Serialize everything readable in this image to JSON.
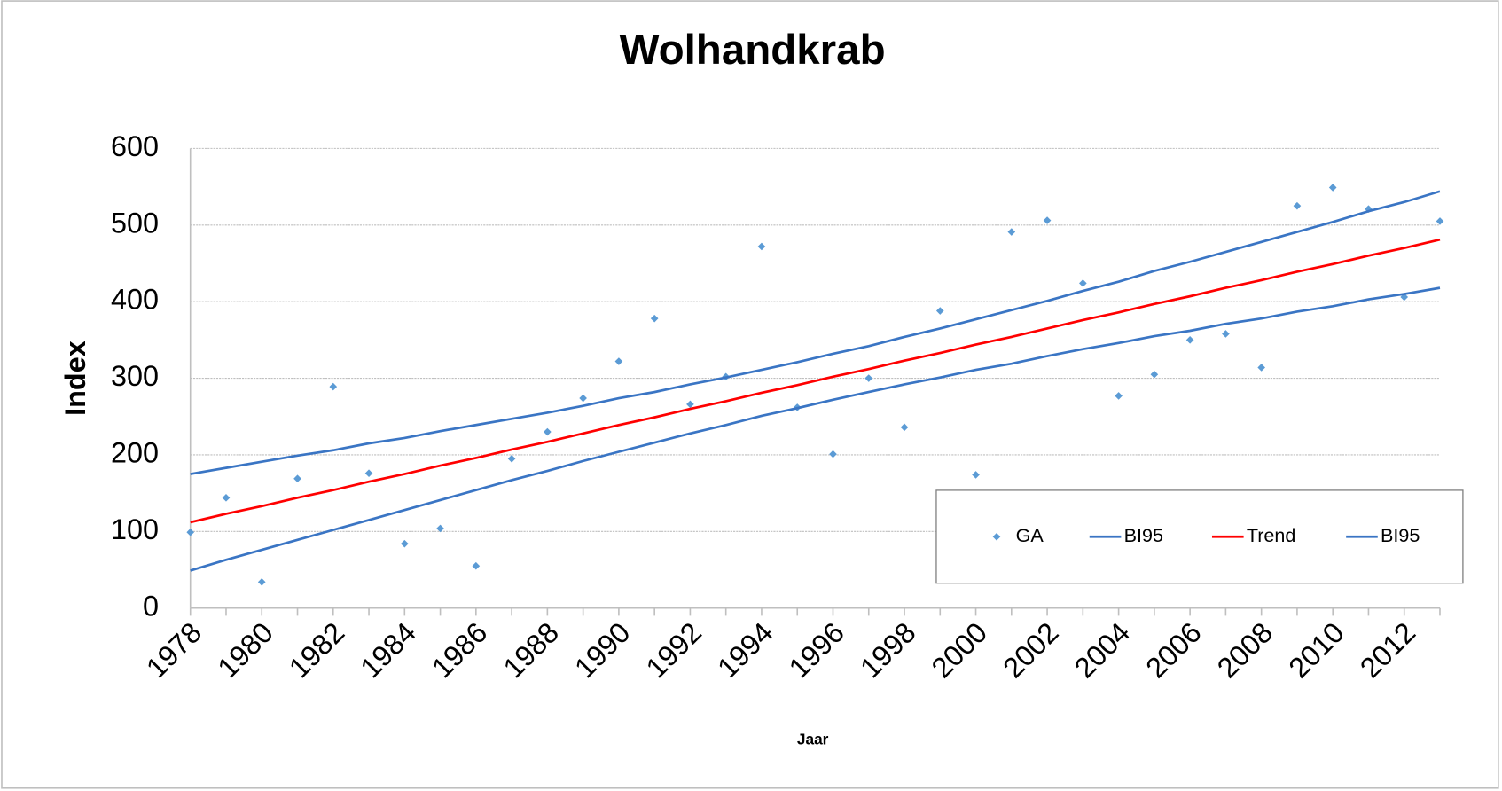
{
  "chart_data": {
    "type": "line",
    "title": "Wolhandkrab",
    "xlabel": "Jaar",
    "ylabel": "Index",
    "categories": [
      "1978",
      null,
      "1980",
      null,
      "1982",
      null,
      "1984",
      null,
      "1986",
      null,
      "1988",
      null,
      "1990",
      null,
      "1992",
      null,
      "1994",
      null,
      "1996",
      null,
      "1998",
      null,
      "2000",
      null,
      "2002",
      null,
      "2004",
      null,
      "2006",
      null,
      "2008",
      null,
      "2010",
      null,
      "2012",
      null
    ],
    "series": [
      {
        "name": "GA",
        "color": "#5b9bd5",
        "marker": "diamond",
        "line": false,
        "values": [
          99,
          144,
          34,
          169,
          289,
          176,
          84,
          104,
          55,
          195,
          230,
          274,
          322,
          378,
          266,
          302,
          472,
          262,
          201,
          300,
          236,
          388,
          174,
          491,
          506,
          424,
          277,
          305,
          350,
          358,
          314,
          525,
          549,
          521,
          406,
          505
        ]
      },
      {
        "name": "BI95",
        "color": "#3a75c4",
        "marker": "none",
        "line": true,
        "values": [
          175,
          183,
          191,
          199,
          206,
          215,
          222,
          231,
          239,
          247,
          255,
          264,
          274,
          282,
          292,
          301,
          311,
          321,
          332,
          342,
          354,
          365,
          377,
          389,
          401,
          414,
          426,
          440,
          452,
          465,
          478,
          491,
          504,
          518,
          530,
          544
        ]
      },
      {
        "name": "Trend",
        "color": "#ff0000",
        "marker": "none",
        "line": true,
        "values": [
          112,
          123,
          133,
          144,
          154,
          165,
          175,
          186,
          196,
          207,
          217,
          228,
          239,
          249,
          260,
          270,
          281,
          291,
          302,
          312,
          323,
          333,
          344,
          354,
          365,
          376,
          386,
          397,
          407,
          418,
          428,
          439,
          449,
          460,
          470,
          481
        ]
      },
      {
        "name": "BI95",
        "color": "#3a75c4",
        "marker": "none",
        "line": true,
        "values": [
          49,
          63,
          76,
          89,
          102,
          115,
          128,
          141,
          154,
          167,
          179,
          192,
          204,
          216,
          228,
          239,
          251,
          261,
          272,
          282,
          292,
          301,
          311,
          319,
          329,
          338,
          346,
          355,
          362,
          371,
          378,
          387,
          394,
          403,
          410,
          418
        ]
      }
    ],
    "ylim": [
      0,
      600
    ],
    "yticks": [
      0,
      100,
      200,
      300,
      400,
      500,
      600
    ],
    "grid": true,
    "legend": "lower right"
  }
}
